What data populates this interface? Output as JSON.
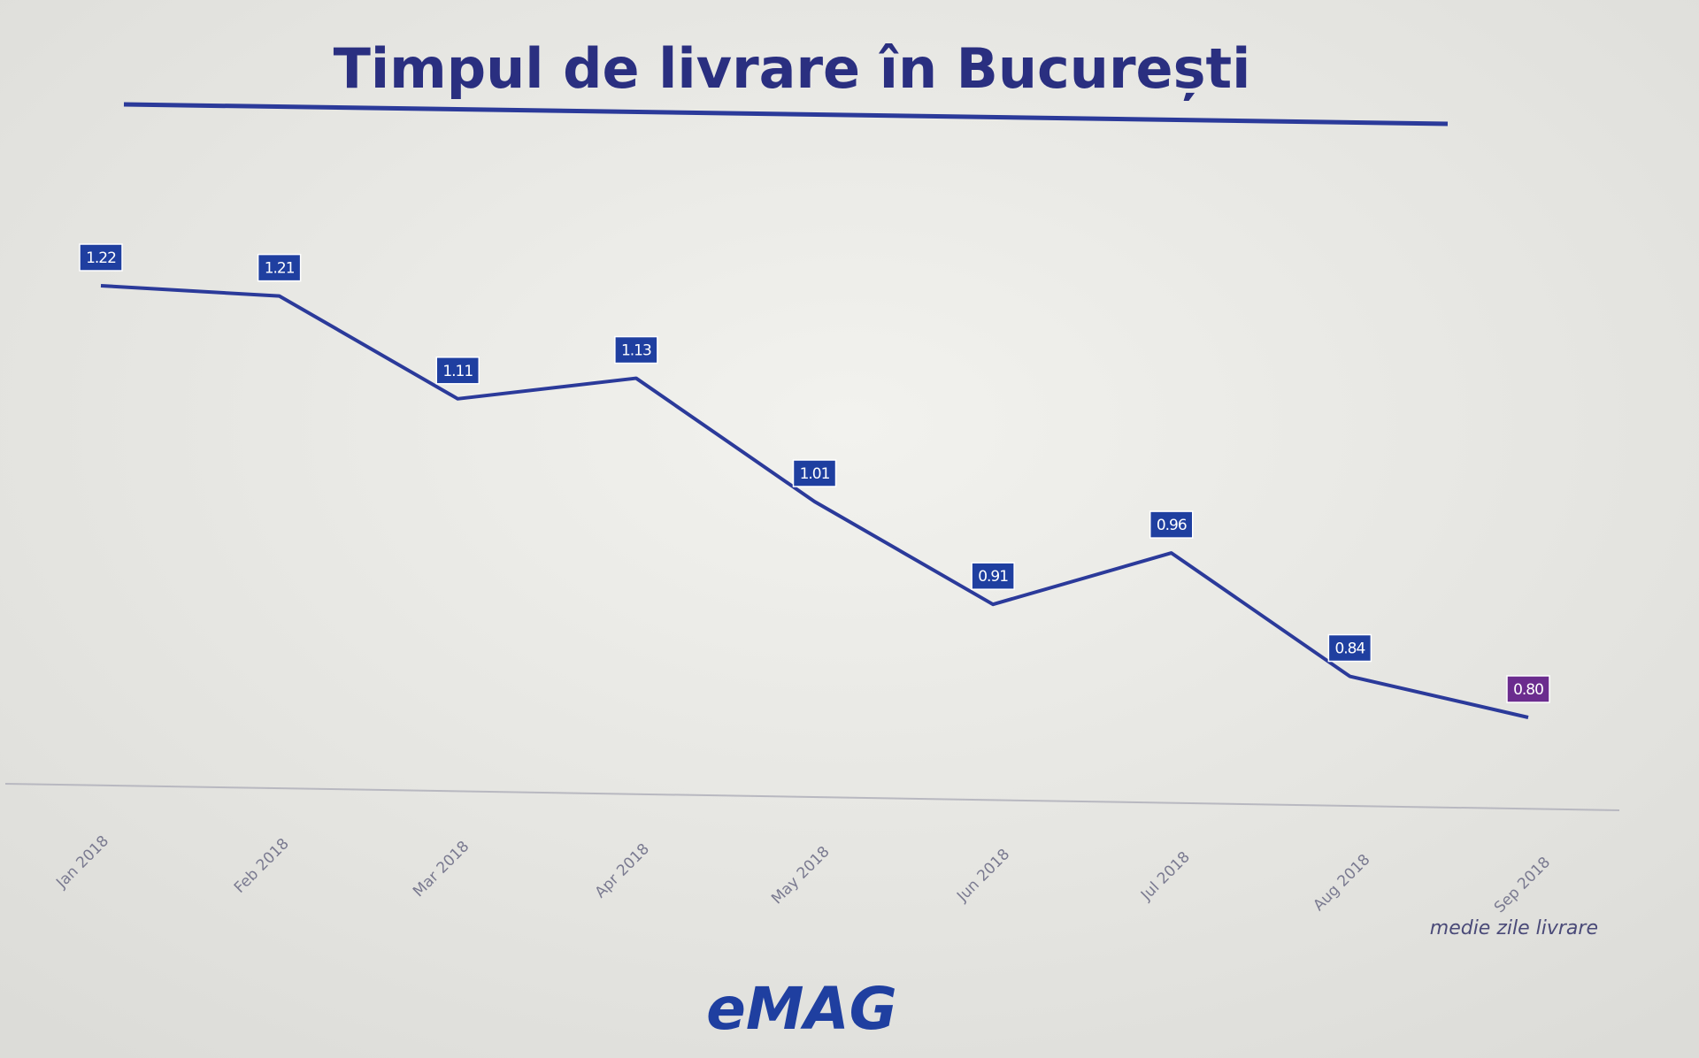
{
  "chart_data": {
    "type": "line",
    "title": "Timpul de livrare în București",
    "categories": [
      "Jan 2018",
      "Feb 2018",
      "Mar 2018",
      "Apr 2018",
      "May 2018",
      "Jun 2018",
      "Jul 2018",
      "Aug 2018",
      "Sep 2018"
    ],
    "values": [
      1.22,
      1.21,
      1.11,
      1.13,
      1.01,
      0.91,
      0.96,
      0.84,
      0.8
    ],
    "value_labels": [
      "1.22",
      "1.21",
      "1.11",
      "1.13",
      "1.01",
      "0.91",
      "0.96",
      "0.84",
      "0.80"
    ],
    "color": "#2b3a9a",
    "label_colors": [
      "#1f3fa0",
      "#1f3fa0",
      "#1f3fa0",
      "#1f3fa0",
      "#1f3fa0",
      "#1f3fa0",
      "#1f3fa0",
      "#1f3fa0",
      "#6b2c8e"
    ],
    "note": "medie zile livrare",
    "logo": "eMAG"
  }
}
